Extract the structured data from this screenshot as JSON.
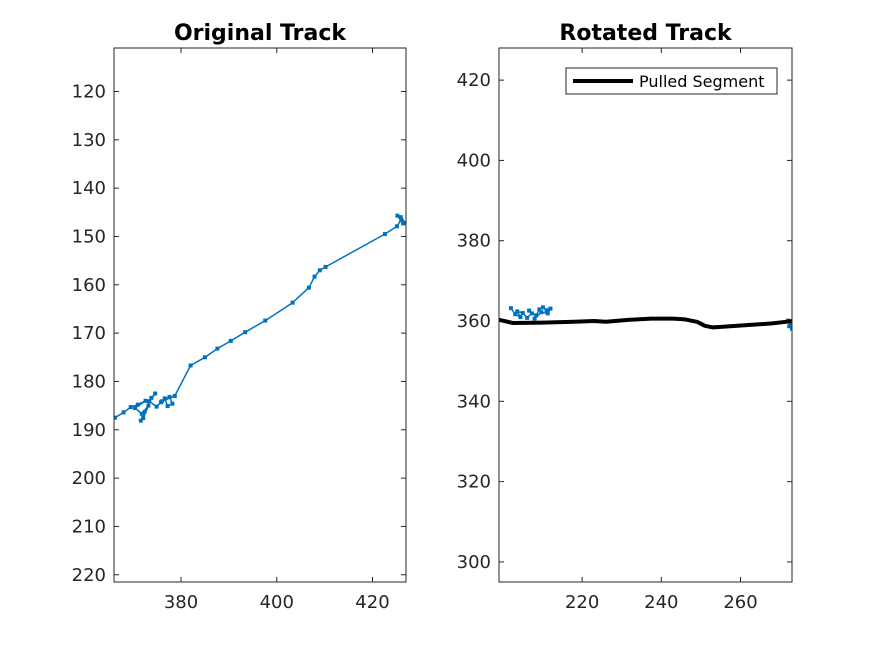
{
  "chart_data": [
    {
      "type": "line",
      "title": "Original Track",
      "xlim": [
        366,
        427
      ],
      "ylim": [
        221.5,
        111
      ],
      "y_reversed": true,
      "xticks": [
        380,
        400,
        420
      ],
      "yticks": [
        120,
        130,
        140,
        150,
        160,
        170,
        180,
        190,
        200,
        210,
        220
      ],
      "series": [
        {
          "color": "#0072BD",
          "marker": "point",
          "x": [
            366.2,
            368.0,
            369.5,
            371.0,
            372.6,
            370.4,
            371.8,
            373.2,
            372.1,
            371.6,
            372.4,
            373.8,
            374.6,
            373.4,
            374.9,
            375.8,
            376.6,
            377.2,
            378.2,
            377.6,
            376.0,
            378.7,
            382.0,
            385.0,
            387.6,
            390.4,
            393.4,
            397.6,
            403.3,
            406.7,
            407.9,
            409.0,
            410.2,
            422.6,
            425.1,
            426.0,
            425.2,
            426.4,
            425.9,
            426.9
          ],
          "y": [
            187.5,
            186.4,
            185.3,
            184.8,
            184.0,
            185.5,
            186.7,
            185.0,
            187.6,
            188.1,
            186.3,
            183.4,
            182.5,
            184.1,
            185.2,
            184.3,
            183.5,
            185.1,
            184.6,
            183.2,
            184.1,
            183.0,
            176.7,
            175.0,
            173.2,
            171.6,
            169.8,
            167.4,
            163.7,
            160.6,
            158.3,
            157.0,
            156.3,
            149.5,
            147.9,
            146.5,
            145.7,
            147.3,
            146.0,
            147.2
          ]
        }
      ]
    },
    {
      "type": "line",
      "title": "Rotated Track",
      "xlim": [
        199,
        273
      ],
      "ylim": [
        295,
        428
      ],
      "xticks": [
        220,
        240,
        260
      ],
      "yticks": [
        300,
        320,
        340,
        360,
        380,
        400,
        420
      ],
      "legend": {
        "location": "top-right",
        "entries": [
          "Pulled Segment"
        ]
      },
      "series": [
        {
          "color": "#0072BD",
          "marker": "point",
          "x": [
            202.0,
            203.1,
            204.4,
            203.6,
            205.0,
            206.1,
            207.3,
            206.6,
            208.4,
            209.2,
            210.1,
            211.0,
            212.0,
            211.3,
            209.7,
            208.0
          ],
          "y": [
            363.2,
            361.7,
            361.0,
            362.4,
            362.0,
            360.8,
            361.9,
            362.6,
            361.4,
            362.9,
            363.4,
            362.7,
            363.1,
            361.9,
            362.2,
            360.6
          ]
        },
        {
          "color": "#0072BD",
          "marker": "point",
          "x": [
            272.0,
            272.6,
            273.0,
            272.3,
            272.9
          ],
          "y": [
            360.1,
            359.0,
            358.1,
            358.7,
            359.6
          ]
        },
        {
          "name": "Pulled Segment",
          "color": "#000000",
          "marker": "none",
          "line_width": 4,
          "x": [
            199.0,
            202.5,
            210.0,
            218.0,
            223.0,
            226.0,
            232.0,
            237.5,
            243.0,
            246.0,
            249.0,
            251.0,
            253.0,
            256.0,
            262.0,
            268.0,
            271.5,
            273.0
          ],
          "y": [
            360.3,
            359.5,
            359.6,
            359.8,
            360.0,
            359.8,
            360.3,
            360.6,
            360.6,
            360.4,
            359.8,
            358.8,
            358.4,
            358.6,
            359.0,
            359.4,
            359.8,
            360.0
          ]
        }
      ]
    }
  ]
}
